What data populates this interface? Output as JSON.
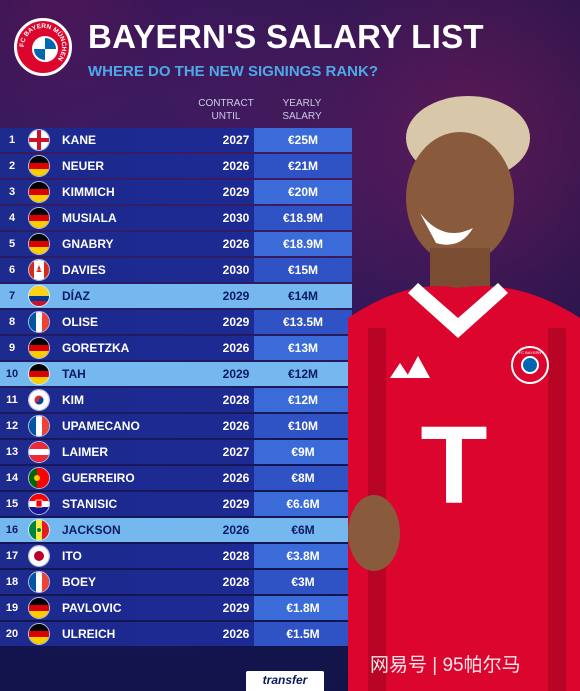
{
  "header": {
    "title": "BAYERN'S SALARY LIST",
    "subtitle": "WHERE DO THE NEW SIGNINGS RANK?",
    "logo_text": "FC BAYERN MÜNCHEN"
  },
  "columns": {
    "contract_line1": "CONTRACT",
    "contract_line2": "UNTIL",
    "salary_line1": "YEARLY",
    "salary_line2": "SALARY"
  },
  "rows": [
    {
      "rank": "1",
      "name": "KANE",
      "year": "2027",
      "salary": "€25M",
      "flag": "england",
      "highlight": false
    },
    {
      "rank": "2",
      "name": "NEUER",
      "year": "2026",
      "salary": "€21M",
      "flag": "germany",
      "highlight": false
    },
    {
      "rank": "3",
      "name": "KIMMICH",
      "year": "2029",
      "salary": "€20M",
      "flag": "germany",
      "highlight": false
    },
    {
      "rank": "4",
      "name": "MUSIALA",
      "year": "2030",
      "salary": "€18.9M",
      "flag": "germany",
      "highlight": false
    },
    {
      "rank": "5",
      "name": "GNABRY",
      "year": "2026",
      "salary": "€18.9M",
      "flag": "germany",
      "highlight": false
    },
    {
      "rank": "6",
      "name": "DAVIES",
      "year": "2030",
      "salary": "€15M",
      "flag": "canada",
      "highlight": false
    },
    {
      "rank": "7",
      "name": "DÍAZ",
      "year": "2029",
      "salary": "€14M",
      "flag": "colombia",
      "highlight": true
    },
    {
      "rank": "8",
      "name": "OLISE",
      "year": "2029",
      "salary": "€13.5M",
      "flag": "france",
      "highlight": false
    },
    {
      "rank": "9",
      "name": "GORETZKA",
      "year": "2026",
      "salary": "€13M",
      "flag": "germany",
      "highlight": false
    },
    {
      "rank": "10",
      "name": "TAH",
      "year": "2029",
      "salary": "€12M",
      "flag": "germany",
      "highlight": true
    },
    {
      "rank": "11",
      "name": "KIM",
      "year": "2028",
      "salary": "€12M",
      "flag": "south-korea",
      "highlight": false
    },
    {
      "rank": "12",
      "name": "UPAMECANO",
      "year": "2026",
      "salary": "€10M",
      "flag": "france",
      "highlight": false
    },
    {
      "rank": "13",
      "name": "LAIMER",
      "year": "2027",
      "salary": "€9M",
      "flag": "austria",
      "highlight": false
    },
    {
      "rank": "14",
      "name": "GUERREIRO",
      "year": "2026",
      "salary": "€8M",
      "flag": "portugal",
      "highlight": false
    },
    {
      "rank": "15",
      "name": "STANISIC",
      "year": "2029",
      "salary": "€6.6M",
      "flag": "croatia",
      "highlight": false
    },
    {
      "rank": "16",
      "name": "JACKSON",
      "year": "2026",
      "salary": "€6M",
      "flag": "senegal",
      "highlight": true
    },
    {
      "rank": "17",
      "name": "ITO",
      "year": "2028",
      "salary": "€3.8M",
      "flag": "japan",
      "highlight": false
    },
    {
      "rank": "18",
      "name": "BOEY",
      "year": "2028",
      "salary": "€3M",
      "flag": "france",
      "highlight": false
    },
    {
      "rank": "19",
      "name": "PAVLOVIC",
      "year": "2029",
      "salary": "€1.8M",
      "flag": "germany",
      "highlight": false
    },
    {
      "rank": "20",
      "name": "ULREICH",
      "year": "2026",
      "salary": "€1.5M",
      "flag": "germany",
      "highlight": false
    }
  ],
  "player_shirt": {
    "sponsor": "T",
    "crest_text": "FC BAYERN"
  },
  "footer": {
    "watermark": "网易号 | 95帕尔马",
    "brand": "transfer"
  },
  "colors": {
    "background": "#161656",
    "row": "#1d2a8e",
    "highlight": "#74b8ef",
    "salary_cell": "#3a6bd8",
    "subtitle": "#4ea8e8",
    "bayern_red": "#dc052d"
  }
}
